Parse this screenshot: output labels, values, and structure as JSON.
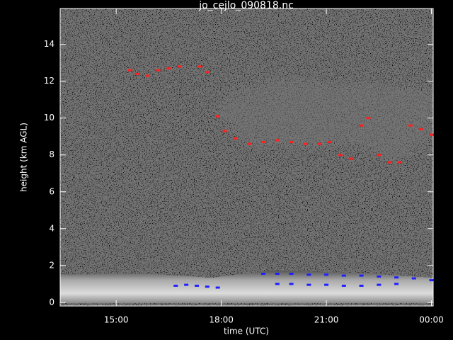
{
  "chart_data": {
    "type": "scatter",
    "title": "jo_cejlo_090818.nc",
    "x_label": "time (UTC)",
    "y_label": "height (km AGL)",
    "xlim": [
      13.4,
      24.05
    ],
    "ylim": [
      -0.2,
      15.95
    ],
    "xticks": [
      {
        "value": 15,
        "label": "15:00"
      },
      {
        "value": 18,
        "label": "18:00"
      },
      {
        "value": 21,
        "label": "21:00"
      },
      {
        "value": 24,
        "label": "00:00"
      }
    ],
    "yticks": [
      0,
      2,
      4,
      6,
      8,
      10,
      12,
      14
    ],
    "series": [
      {
        "color": "#ff2020",
        "x": [
          15.4,
          15.6,
          15.9,
          16.2,
          16.5,
          16.8,
          17.4,
          17.6,
          17.9,
          18.1,
          18.4,
          18.8,
          19.2,
          19.6,
          20.0,
          20.4,
          20.8,
          21.1,
          21.4,
          21.7,
          22.0,
          22.2,
          22.5,
          22.8,
          23.1,
          23.4,
          23.7,
          24.0
        ],
        "values": [
          12.6,
          12.4,
          12.3,
          12.6,
          12.7,
          12.8,
          12.8,
          12.5,
          10.1,
          9.3,
          8.9,
          8.6,
          8.7,
          8.8,
          8.7,
          8.6,
          8.6,
          8.7,
          8.0,
          7.8,
          9.6,
          10.0,
          8.0,
          7.6,
          7.6,
          9.6,
          9.4,
          9.1
        ]
      },
      {
        "color": "#2020ff",
        "x": [
          16.7,
          17.0,
          17.3,
          17.6,
          17.9
        ],
        "values": [
          0.9,
          0.95,
          0.9,
          0.85,
          0.8
        ]
      },
      {
        "color": "#2020ff",
        "x": [
          19.2,
          19.6,
          20.0,
          20.5,
          21.0,
          21.5,
          22.0,
          22.5,
          23.0,
          23.5,
          24.0
        ],
        "values": [
          1.55,
          1.55,
          1.55,
          1.5,
          1.5,
          1.45,
          1.45,
          1.4,
          1.35,
          1.3,
          1.2
        ]
      },
      {
        "color": "#2020ff",
        "x": [
          19.6,
          20.0,
          20.5,
          21.0,
          21.5,
          22.0,
          22.5,
          23.0
        ],
        "values": [
          1.0,
          1.0,
          0.95,
          0.95,
          0.9,
          0.9,
          0.95,
          1.0
        ]
      }
    ]
  }
}
